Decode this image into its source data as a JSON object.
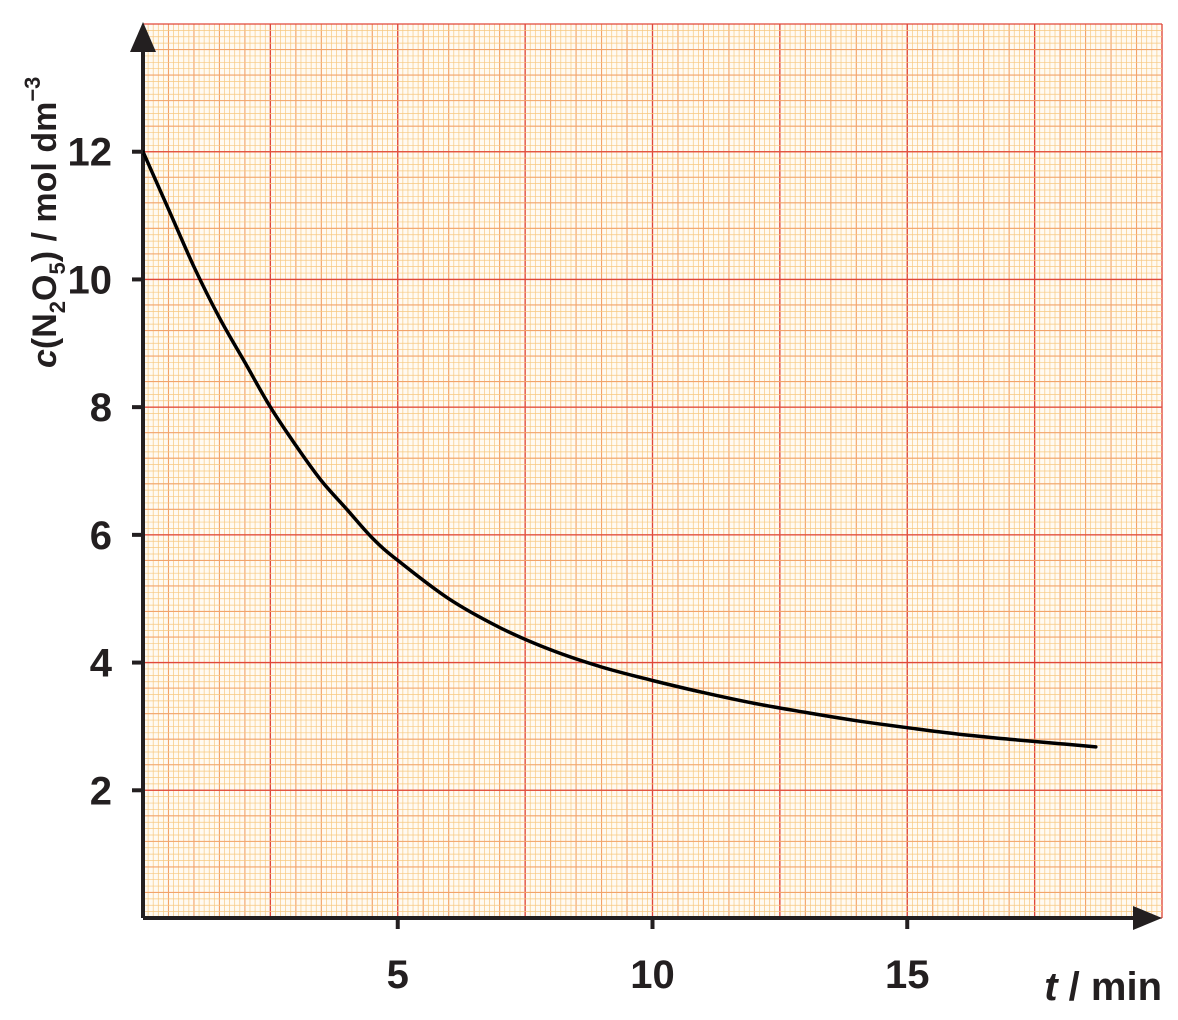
{
  "chart_data": {
    "type": "line",
    "xlim": [
      0,
      20
    ],
    "ylim": [
      0,
      14
    ],
    "x_ticks": [
      5,
      10,
      15
    ],
    "x_tick_labels": [
      "5",
      "10",
      "15"
    ],
    "y_ticks": [
      2,
      4,
      6,
      8,
      10,
      12
    ],
    "y_tick_labels": [
      "2",
      "4",
      "6",
      "8",
      "10",
      "12"
    ],
    "xlabel": {
      "var": "t",
      "unit": " / min"
    },
    "ylabel": {
      "var": "c",
      "open": "(N",
      "sub1": "2",
      "mid": "O",
      "sub2": "5",
      "close": ") / mol dm",
      "sup": "−3"
    },
    "grid": true,
    "colors": {
      "minor_grid": "#f7c87f",
      "mid_grid": "#f2a36a",
      "major_grid": "#e0473a",
      "axis": "#231f20",
      "curve": "#000000",
      "text": "#231f20"
    },
    "series": [
      {
        "x": [
          0,
          0.5,
          1,
          1.5,
          2,
          2.5,
          3,
          3.5,
          4,
          4.5,
          5,
          6,
          7,
          8,
          9,
          10,
          11,
          12,
          13,
          14,
          15,
          16,
          17,
          18,
          18.7
        ],
        "y": [
          12.0,
          11.1,
          10.2,
          9.4,
          8.7,
          8.0,
          7.4,
          6.85,
          6.4,
          5.95,
          5.6,
          5.0,
          4.55,
          4.2,
          3.93,
          3.72,
          3.53,
          3.36,
          3.22,
          3.09,
          2.98,
          2.88,
          2.8,
          2.73,
          2.68
        ]
      }
    ]
  }
}
